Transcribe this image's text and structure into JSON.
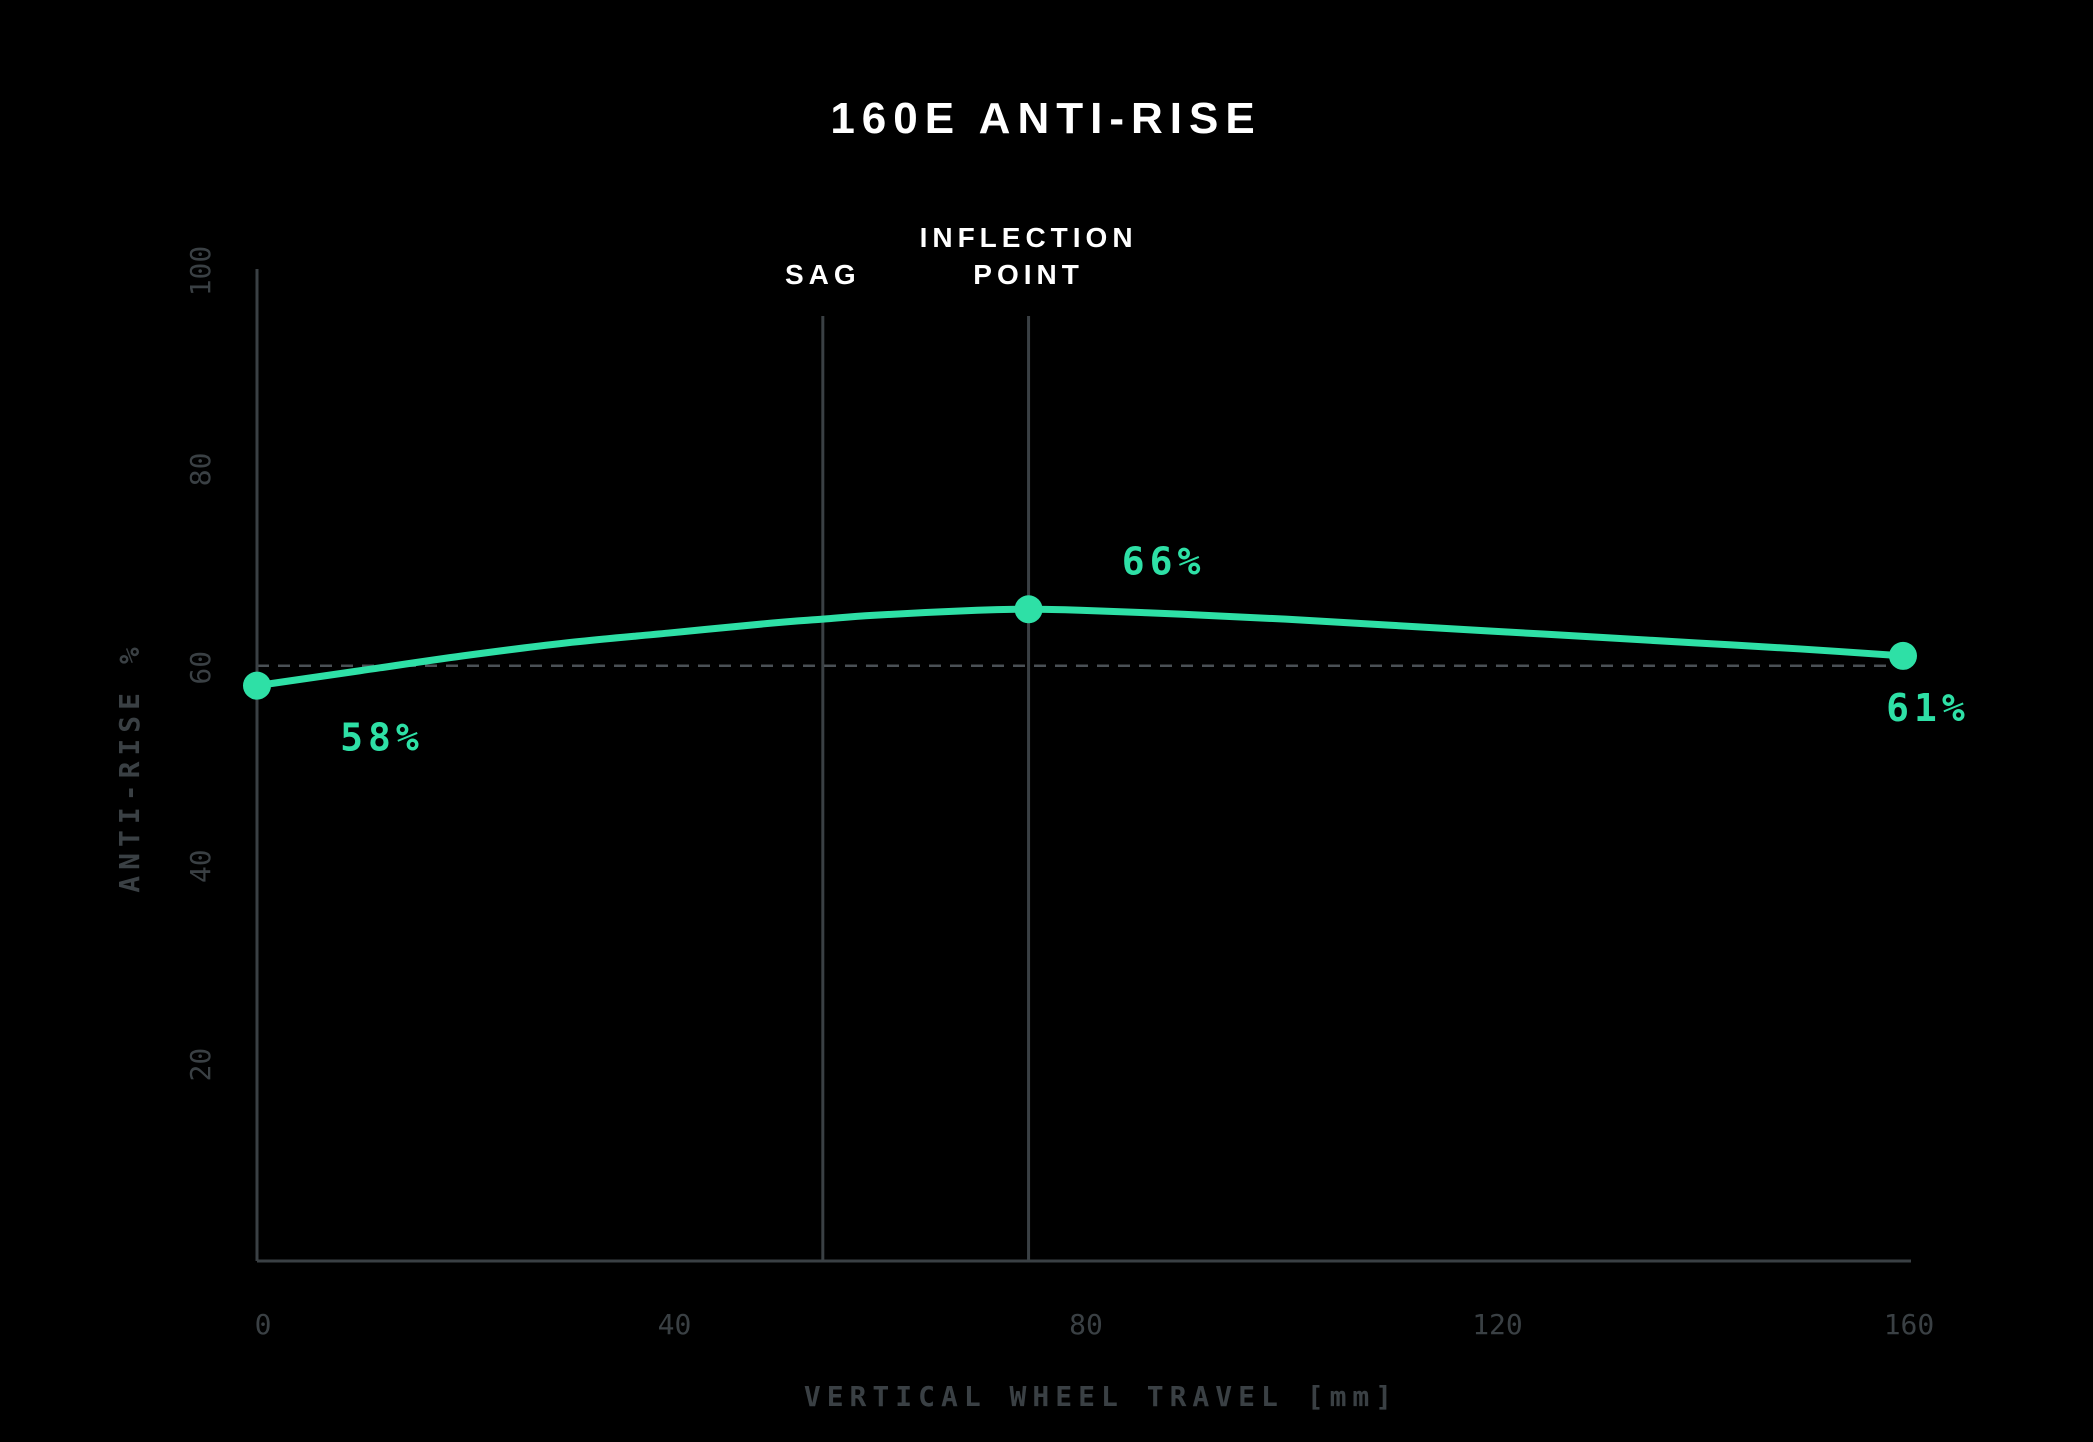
{
  "chart_data": {
    "type": "line",
    "title": "160E ANTI-RISE",
    "xlabel": "VERTICAL WHEEL TRAVEL [mm]",
    "ylabel": "ANTI-RISE %",
    "xlim": [
      0,
      160
    ],
    "ylim": [
      0,
      100
    ],
    "x_ticks": [
      "0",
      "40",
      "80",
      "120",
      "160"
    ],
    "y_ticks": [
      "20",
      "40",
      "60",
      "80",
      "100"
    ],
    "grid": false,
    "legend": "none",
    "series": [
      {
        "x": [
          0,
          10,
          20,
          30,
          40,
          50,
          55,
          60,
          70,
          75,
          80,
          90,
          100,
          110,
          120,
          130,
          140,
          150,
          160
        ],
        "y": [
          58,
          59.5,
          61,
          62.3,
          63.3,
          64.3,
          64.7,
          65.1,
          65.6,
          65.7,
          65.6,
          65.2,
          64.7,
          64.1,
          63.5,
          62.9,
          62.3,
          61.7,
          61
        ],
        "color": "#2ee0a6"
      }
    ],
    "highlight_points": [
      {
        "x": 0,
        "y": 58,
        "label": "58%"
      },
      {
        "x": 75,
        "y": 65.7,
        "label": "66%"
      },
      {
        "x": 160,
        "y": 61,
        "label": "61%"
      }
    ],
    "reference_line": {
      "y": 60,
      "style": "dashed"
    },
    "vertical_markers": [
      {
        "x": 55,
        "label_lines": [
          "SAG"
        ]
      },
      {
        "x": 75,
        "label_lines": [
          "INFLECTION",
          "POINT"
        ]
      }
    ],
    "colors": {
      "background": "#000000",
      "line": "#2ee0a6",
      "axis": "#3a4044",
      "text": "#ffffff"
    }
  }
}
